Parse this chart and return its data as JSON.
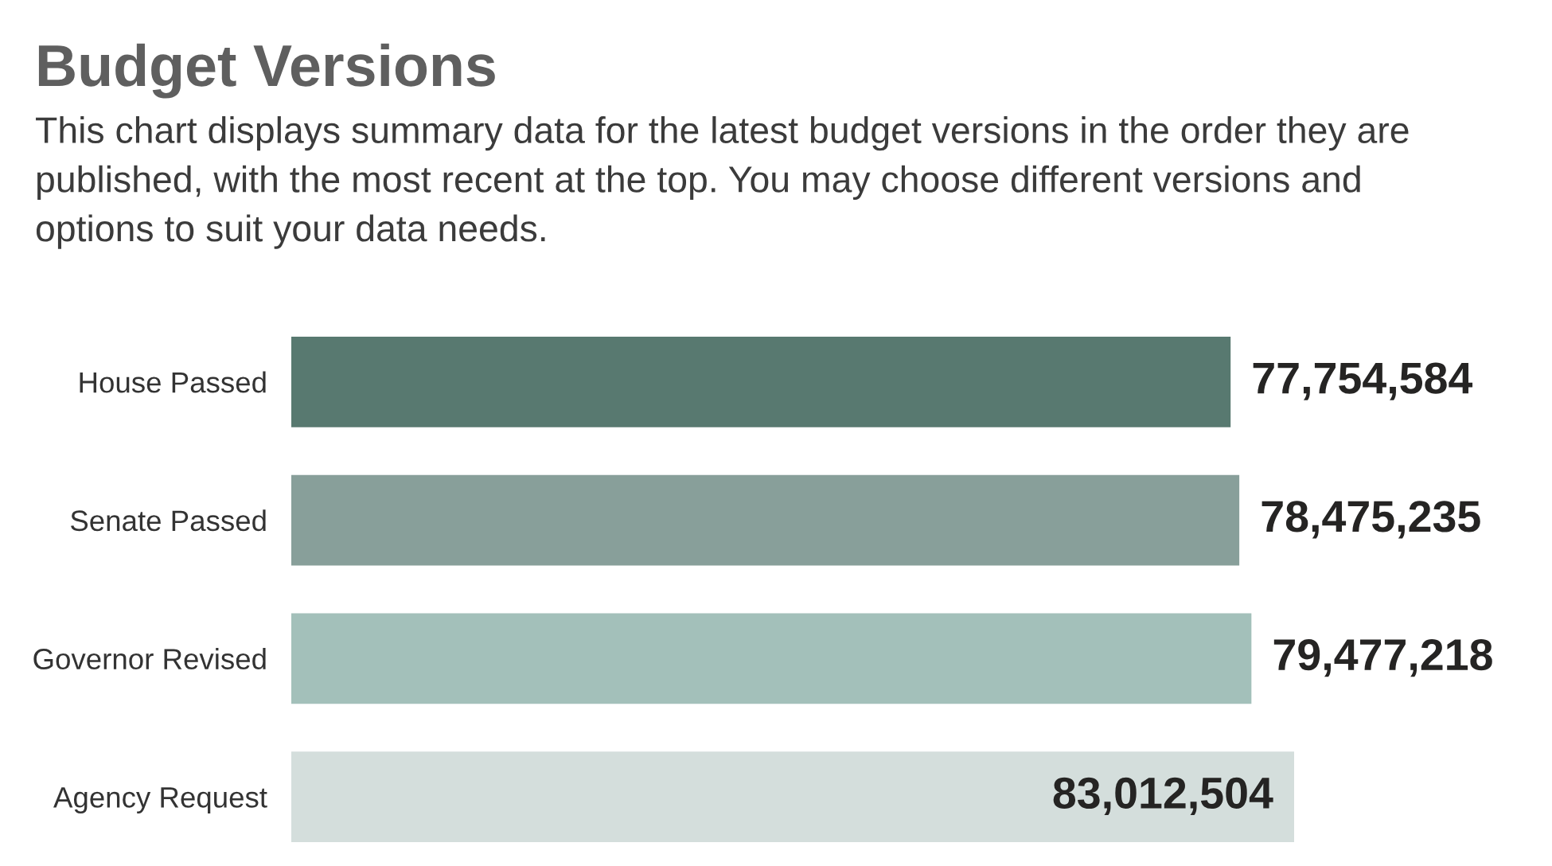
{
  "chart_data": {
    "type": "bar",
    "orientation": "horizontal",
    "title": "Budget Versions",
    "subtitle": "This chart displays summary data for the latest budget versions in the order they are\npublished, with the most recent at the top. You may choose different versions and\noptions to suit your data needs.",
    "categories": [
      "House Passed",
      "Senate Passed",
      "Governor Revised",
      "Agency Request"
    ],
    "values": [
      77754584,
      78475235,
      79477218,
      83012504
    ],
    "value_labels": [
      "77,754,584",
      "78,475,235",
      "79,477,218",
      "83,012,504"
    ],
    "colors": [
      "#587970",
      "#889f9a",
      "#a3c0ba",
      "#d4dedc"
    ]
  }
}
